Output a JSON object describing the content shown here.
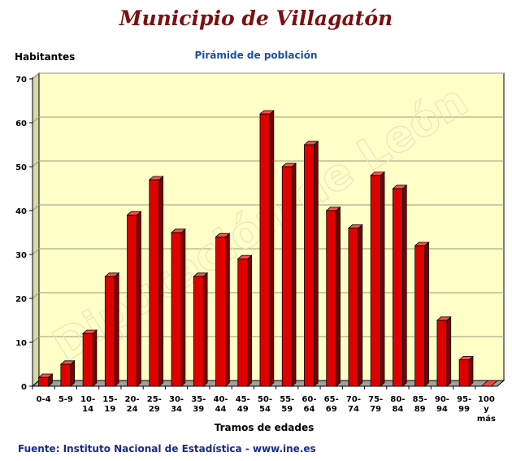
{
  "header": {
    "title": "Municipio de Villagatón",
    "subtitle": "Pirámide de población"
  },
  "footer": {
    "source": "Fuente: Instituto Nacional de Estadística - www.ine.es"
  },
  "watermark": "Diputación de León",
  "colors": {
    "bar": "#e00000",
    "plot_background": "#ffffc8",
    "title": "#7a1010",
    "subtitle": "#1a4fa8",
    "source": "#1a2a8a"
  },
  "chart_data": {
    "type": "bar",
    "title": "Pirámide de población",
    "xlabel": "Tramos de edades",
    "ylabel": "Habitantes",
    "ylim": [
      0,
      70
    ],
    "yticks": [
      0,
      10,
      20,
      30,
      40,
      50,
      60,
      70
    ],
    "grid": true,
    "categories": [
      "0-4",
      "5-9",
      "10-14",
      "15-19",
      "20-24",
      "25-29",
      "30-34",
      "35-39",
      "40-44",
      "45-49",
      "50-54",
      "55-59",
      "60-64",
      "65-69",
      "70-74",
      "75-79",
      "80-84",
      "85-89",
      "90-94",
      "95-99",
      "100 y más"
    ],
    "category_label_lines": [
      [
        "0-4"
      ],
      [
        "5-9"
      ],
      [
        "10-",
        "14"
      ],
      [
        "15-",
        "19"
      ],
      [
        "20-",
        "24"
      ],
      [
        "25-",
        "29"
      ],
      [
        "30-",
        "34"
      ],
      [
        "35-",
        "39"
      ],
      [
        "40-",
        "44"
      ],
      [
        "45-",
        "49"
      ],
      [
        "50-",
        "54"
      ],
      [
        "55-",
        "59"
      ],
      [
        "60-",
        "64"
      ],
      [
        "65-",
        "69"
      ],
      [
        "70-",
        "74"
      ],
      [
        "75-",
        "79"
      ],
      [
        "80-",
        "84"
      ],
      [
        "85-",
        "89"
      ],
      [
        "90-",
        "94"
      ],
      [
        "95-",
        "99"
      ],
      [
        "100",
        "y",
        "más"
      ]
    ],
    "values": [
      2,
      5,
      12,
      25,
      39,
      47,
      35,
      25,
      34,
      29,
      62,
      50,
      55,
      40,
      36,
      48,
      45,
      32,
      15,
      6,
      0
    ]
  }
}
